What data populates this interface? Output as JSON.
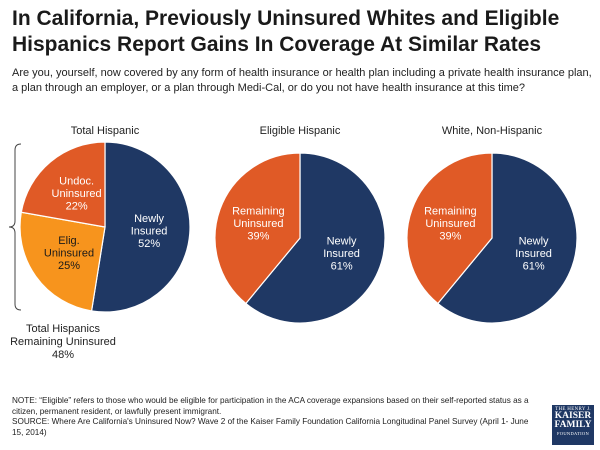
{
  "title": "In California, Previously Uninsured Whites and Eligible Hispanics Report Gains In Coverage At Similar Rates",
  "subtitle": "Are you, yourself, now covered by any form of health insurance or health plan including a private health insurance plan, a plan through an employer, or a plan through Medi-Cal, or do you not have health insurance at this time?",
  "colors": {
    "navy": "#1f3864",
    "dark_orange": "#e05a26",
    "light_orange": "#f7941d",
    "text": "#222222"
  },
  "bracket_label": {
    "line1": "Total Hispanics",
    "line2": "Remaining Uninsured",
    "line3": "48%"
  },
  "chart_data": [
    {
      "type": "pie",
      "title": "Total Hispanic",
      "slices": [
        {
          "label_lines": [
            "Newly",
            "Insured"
          ],
          "value": 52,
          "value_label": "52%",
          "color": "#1f3864",
          "text_color": "#ffffff"
        },
        {
          "label_lines": [
            "Elig.",
            "Uninsured"
          ],
          "value": 25,
          "value_label": "25%",
          "color": "#f7941d",
          "text_color": "#1a1a1a"
        },
        {
          "label_lines": [
            "Undoc.",
            "Uninsured"
          ],
          "value": 22,
          "value_label": "22%",
          "color": "#e05a26",
          "text_color": "#ffffff"
        }
      ]
    },
    {
      "type": "pie",
      "title": "Eligible Hispanic",
      "slices": [
        {
          "label_lines": [
            "Newly",
            "Insured"
          ],
          "value": 61,
          "value_label": "61%",
          "color": "#1f3864",
          "text_color": "#ffffff"
        },
        {
          "label_lines": [
            "Remaining",
            "Uninsured"
          ],
          "value": 39,
          "value_label": "39%",
          "color": "#e05a26",
          "text_color": "#ffffff"
        }
      ]
    },
    {
      "type": "pie",
      "title": "White, Non-Hispanic",
      "slices": [
        {
          "label_lines": [
            "Newly",
            "Insured"
          ],
          "value": 61,
          "value_label": "61%",
          "color": "#1f3864",
          "text_color": "#ffffff"
        },
        {
          "label_lines": [
            "Remaining",
            "Uninsured"
          ],
          "value": 39,
          "value_label": "39%",
          "color": "#e05a26",
          "text_color": "#ffffff"
        }
      ]
    }
  ],
  "notes": {
    "note": "NOTE: “Eligible” refers to those who would be eligible for participation in the ACA coverage expansions based on their self-reported status as a citizen, permanent resident, or lawfully present immigrant.",
    "source": "SOURCE: Where Are California's Uninsured Now? Wave 2 of the Kaiser Family Foundation California Longitudinal Panel Survey (April 1- June 15, 2014)"
  },
  "logo": {
    "line1": "THE HENRY J.",
    "line2a": "KAISER",
    "line2b": "FAMILY",
    "line3": "FOUNDATION"
  }
}
